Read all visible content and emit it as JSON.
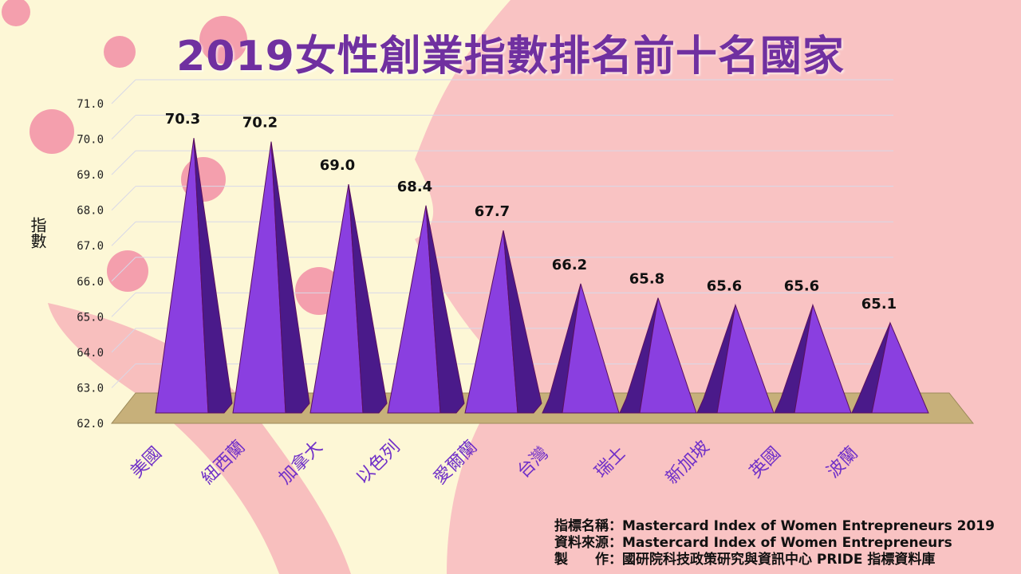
{
  "title": "2019女性創業指數排名前十名國家",
  "chart_data": {
    "type": "bar",
    "title": "2019女性創業指數排名前十名國家",
    "xlabel": "",
    "ylabel": "指數",
    "ylim": [
      62.0,
      71.0
    ],
    "yticks": [
      "62.0",
      "63.0",
      "64.0",
      "65.0",
      "66.0",
      "67.0",
      "68.0",
      "69.0",
      "70.0",
      "71.0"
    ],
    "grid": true,
    "categories": [
      "美國",
      "紐西蘭",
      "加拿大",
      "以色列",
      "愛爾蘭",
      "台灣",
      "瑞士",
      "新加坡",
      "英國",
      "波蘭"
    ],
    "values": [
      70.3,
      70.2,
      69.0,
      68.4,
      67.7,
      66.2,
      65.8,
      65.6,
      65.6,
      65.1
    ],
    "data_labels": [
      "70.3",
      "70.2",
      "69.0",
      "68.4",
      "67.7",
      "66.2",
      "65.8",
      "65.6",
      "65.6",
      "65.1"
    ]
  },
  "colors": {
    "title": "#7030a0",
    "bar_front": "#8a3fe0",
    "bar_side": "#4a1a8a",
    "category": "#7030c8",
    "floor": "#c7b07a"
  },
  "footer": [
    {
      "label": "指標名稱：",
      "value": "Mastercard Index of Women Entrepreneurs 2019"
    },
    {
      "label": "資料來源：",
      "value": "Mastercard Index of Women Entrepreneurs"
    },
    {
      "label": "製　　作：",
      "value": "國研院科技政策研究與資訊中心 PRIDE 指標資料庫"
    }
  ]
}
